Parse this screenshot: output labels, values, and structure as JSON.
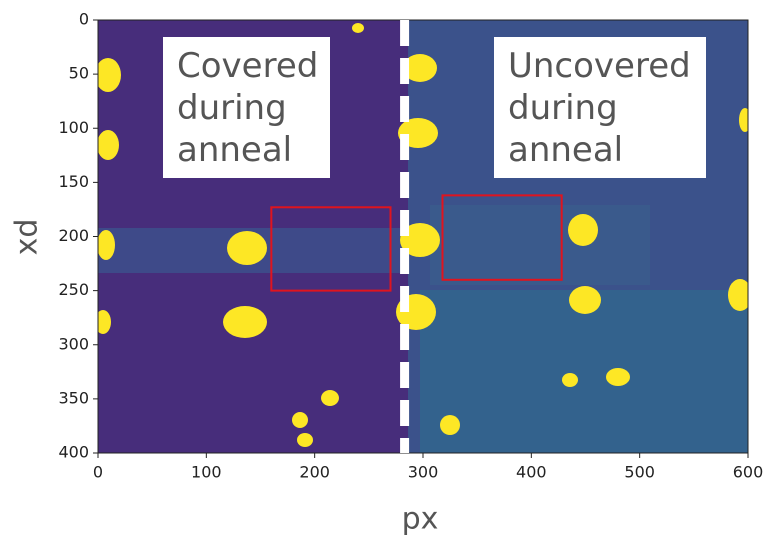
{
  "chart_data": {
    "type": "image",
    "xlabel": "px",
    "ylabel": "xd",
    "xlim": [
      0,
      600
    ],
    "ylim": [
      400,
      0
    ],
    "xticks": [
      0,
      100,
      200,
      300,
      400,
      500,
      600
    ],
    "yticks": [
      0,
      50,
      100,
      150,
      200,
      250,
      300,
      350,
      400
    ],
    "divider_x": 283,
    "divider_color": "#ffffff",
    "boxes": [
      {
        "x": [
          160,
          270
        ],
        "y": [
          173,
          250
        ],
        "color": "#e0141e"
      },
      {
        "x": [
          318,
          428
        ],
        "y": [
          162,
          240
        ],
        "color": "#e0141e"
      }
    ],
    "annotations": [
      {
        "lines": [
          "Covered",
          "during",
          "anneal"
        ]
      },
      {
        "lines": [
          "Uncovered",
          "during",
          "anneal"
        ]
      }
    ]
  }
}
